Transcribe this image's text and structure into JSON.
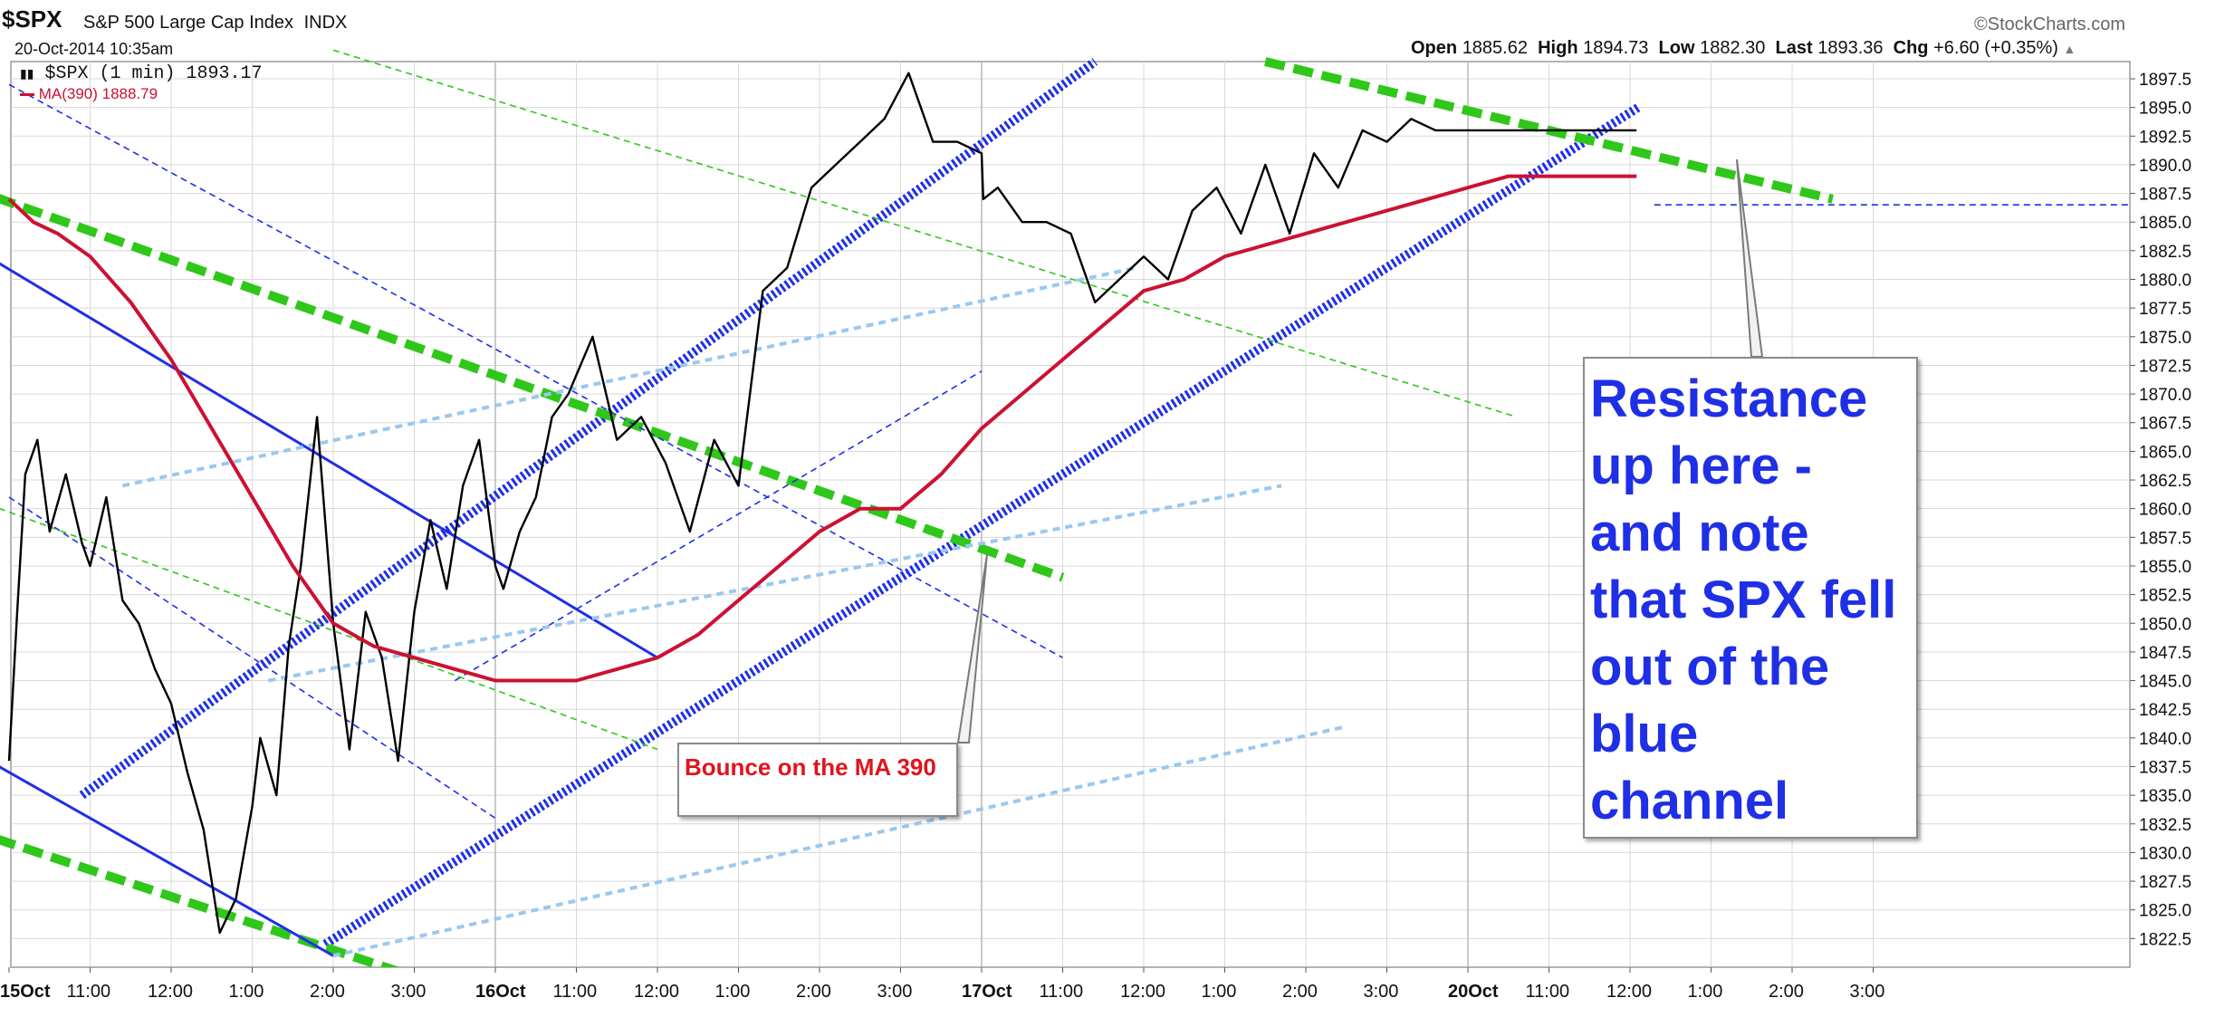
{
  "header": {
    "symbol": "$SPX",
    "name": "S&P 500 Large Cap Index",
    "exchange": "INDX",
    "date": "20-Oct-2014 10:35am",
    "brand": "StockCharts.com",
    "brand_icon": "copyright-icon",
    "open_label": "Open",
    "open_value": "1885.62",
    "high_label": "High",
    "high_value": "1894.73",
    "low_label": "Low",
    "low_value": "1882.30",
    "last_label": "Last",
    "last_value": "1893.36",
    "chg_label": "Chg",
    "chg_value": "+6.60 (+0.35%)"
  },
  "legend": {
    "price": "$SPX (1 min) 1893.17",
    "ma": "MA(390) 1888.79"
  },
  "annotations": {
    "bounce": "Bounce on the MA 390",
    "resistance": "Resistance up here - and note that SPX fell out of the blue channel"
  },
  "colors": {
    "price": "#000000",
    "ma": "#cc1133",
    "channel_blue": "#1f2fe6",
    "trend_green": "#2fc71a",
    "light_blue": "#9ac8f0",
    "grid": "#d8d8d8",
    "annotation_red": "#e0141e",
    "annotation_blue": "#1f2fe6"
  },
  "chart_data": {
    "type": "line",
    "ylim": [
      1820,
      1899
    ],
    "y_ticks": [
      "1822.5",
      "1825.0",
      "1827.5",
      "1830.0",
      "1832.5",
      "1835.0",
      "1837.5",
      "1840.0",
      "1842.5",
      "1845.0",
      "1847.5",
      "1850.0",
      "1852.5",
      "1855.0",
      "1857.5",
      "1860.0",
      "1862.5",
      "1865.0",
      "1867.5",
      "1870.0",
      "1872.5",
      "1875.0",
      "1877.5",
      "1880.0",
      "1882.5",
      "1885.0",
      "1887.5",
      "1890.0",
      "1892.5",
      "1895.0",
      "1897.5"
    ],
    "x_ticks": [
      "15Oct",
      "11:00",
      "12:00",
      "1:00",
      "2:00",
      "3:00",
      "16Oct",
      "11:00",
      "12:00",
      "1:00",
      "2:00",
      "3:00",
      "17Oct",
      "11:00",
      "12:00",
      "1:00",
      "2:00",
      "3:00",
      "20Oct",
      "11:00",
      "12:00",
      "1:00",
      "2:00",
      "3:00"
    ],
    "x_unit": "trading hours since 15-Oct 10:00",
    "series": [
      {
        "name": "$SPX (1 min)",
        "x": [
          0,
          0.1,
          0.2,
          0.35,
          0.5,
          0.7,
          0.9,
          1.0,
          1.2,
          1.4,
          1.6,
          1.8,
          2.0,
          2.2,
          2.4,
          2.6,
          2.8,
          3.0,
          3.1,
          3.3,
          3.45,
          3.6,
          3.8,
          4.0,
          4.2,
          4.4,
          4.6,
          4.8,
          5.0,
          5.2,
          5.4,
          5.6,
          5.8,
          6.0,
          6.1,
          6.3,
          6.5,
          6.7,
          6.9,
          7.2,
          7.5,
          7.8,
          8.1,
          8.4,
          8.7,
          9.0,
          9.3,
          9.6,
          9.9,
          10.2,
          10.5,
          10.8,
          11.1,
          11.4,
          11.7,
          12.0,
          12.02,
          12.2,
          12.5,
          12.8,
          13.1,
          13.4,
          13.7,
          14.0,
          14.3,
          14.6,
          14.9,
          15.2,
          15.5,
          15.8,
          16.1,
          16.4,
          16.7,
          17.0,
          17.3,
          17.6,
          17.9,
          18.2,
          18.5,
          18.7,
          18.9,
          19.0,
          19.05,
          19.2,
          19.4,
          19.6,
          19.75,
          19.9,
          20.05,
          20.08
        ],
        "values": [
          1838,
          1851,
          1863,
          1866,
          1858,
          1863,
          1857,
          1855,
          1861,
          1852,
          1850,
          1846,
          1843,
          1837,
          1832,
          1823,
          1826,
          1834,
          1840,
          1835,
          1848,
          1855,
          1868,
          1850,
          1839,
          1851,
          1847,
          1838,
          1851,
          1859,
          1853,
          1862,
          1866,
          1855,
          1853,
          1858,
          1861,
          1868,
          1870,
          1875,
          1866,
          1868,
          1864,
          1858,
          1866,
          1862,
          1879,
          1881,
          1888,
          1890,
          1892,
          1894,
          1898,
          1892,
          1892,
          1891,
          1887,
          1888,
          1885,
          1885,
          1884,
          1878,
          1880,
          1882,
          1880,
          1886,
          1888,
          1884,
          1890,
          1884,
          1891,
          1888,
          1893,
          1892,
          1894,
          1893,
          1893,
          1893,
          1893,
          1893,
          1893,
          1893,
          1893,
          1893,
          1893,
          1893,
          1893,
          1893,
          1893,
          1893
        ],
        "color": "#000000"
      },
      {
        "name": "MA(390)",
        "x": [
          0,
          0.3,
          0.6,
          1.0,
          1.5,
          2.0,
          2.5,
          3.0,
          3.5,
          4.0,
          4.5,
          5.0,
          5.5,
          6.0,
          6.5,
          7.0,
          7.5,
          8.0,
          8.5,
          9.0,
          9.5,
          10.0,
          10.5,
          11.0,
          11.5,
          12.0,
          12.5,
          13.0,
          13.5,
          14.0,
          14.5,
          15.0,
          15.5,
          16.0,
          16.5,
          17.0,
          17.5,
          18.0,
          18.5,
          19.0,
          19.5,
          20.0,
          20.08
        ],
        "values": [
          1887,
          1885,
          1884,
          1882,
          1878,
          1873,
          1867,
          1861,
          1855,
          1850,
          1848,
          1847,
          1846,
          1845,
          1845,
          1845,
          1846,
          1847,
          1849,
          1852,
          1855,
          1858,
          1860,
          1860,
          1863,
          1867,
          1870,
          1873,
          1876,
          1879,
          1880,
          1882,
          1883,
          1884,
          1885,
          1886,
          1887,
          1888,
          1889,
          1889,
          1889,
          1889,
          1889
        ],
        "color": "#cc1133"
      }
    ],
    "trendlines": [
      {
        "style": "blue-dotted-heavy",
        "x1": 0.9,
        "y1": 1835,
        "x2": 13.4,
        "y2": 1899
      },
      {
        "style": "blue-dotted-heavy",
        "x1": 3.9,
        "y1": 1822,
        "x2": 20.1,
        "y2": 1895
      },
      {
        "style": "green-dashed-heavy",
        "x1": -0.5,
        "y1": 1888,
        "x2": 13.0,
        "y2": 1854
      },
      {
        "style": "green-dashed-heavy",
        "x1": -0.5,
        "y1": 1832,
        "x2": 5.5,
        "y2": 1818
      },
      {
        "style": "green-dashed-heavy",
        "x1": 15.5,
        "y1": 1899,
        "x2": 22.5,
        "y2": 1887
      },
      {
        "style": "blue-solid",
        "x1": -0.5,
        "y1": 1883,
        "x2": 8.0,
        "y2": 1847
      },
      {
        "style": "blue-solid",
        "x1": -0.5,
        "y1": 1839,
        "x2": 4.0,
        "y2": 1821
      },
      {
        "style": "blue-thin-dashed",
        "x1": 0.0,
        "y1": 1897,
        "x2": 13.0,
        "y2": 1847
      },
      {
        "style": "blue-thin-dashed",
        "x1": 0.0,
        "y1": 1861,
        "x2": 6.0,
        "y2": 1833
      },
      {
        "style": "blue-thin-dashed",
        "x1": 5.5,
        "y1": 1845,
        "x2": 12.0,
        "y2": 1872
      },
      {
        "style": "blue-thin-dashed",
        "x1": 20.3,
        "y1": 1886.5,
        "x2": 26.5,
        "y2": 1886.5
      },
      {
        "style": "green-thin-dashed",
        "x1": 4.0,
        "y1": 1900,
        "x2": 18.6,
        "y2": 1868
      },
      {
        "style": "green-thin-dashed",
        "x1": -0.5,
        "y1": 1861,
        "x2": 8.0,
        "y2": 1839
      },
      {
        "style": "lightblue-dashed",
        "x1": 1.4,
        "y1": 1862,
        "x2": 13.9,
        "y2": 1881
      },
      {
        "style": "lightblue-dashed",
        "x1": 3.2,
        "y1": 1845,
        "x2": 15.7,
        "y2": 1862
      },
      {
        "style": "lightblue-dashed",
        "x1": 4.0,
        "y1": 1821,
        "x2": 16.5,
        "y2": 1841
      }
    ]
  }
}
